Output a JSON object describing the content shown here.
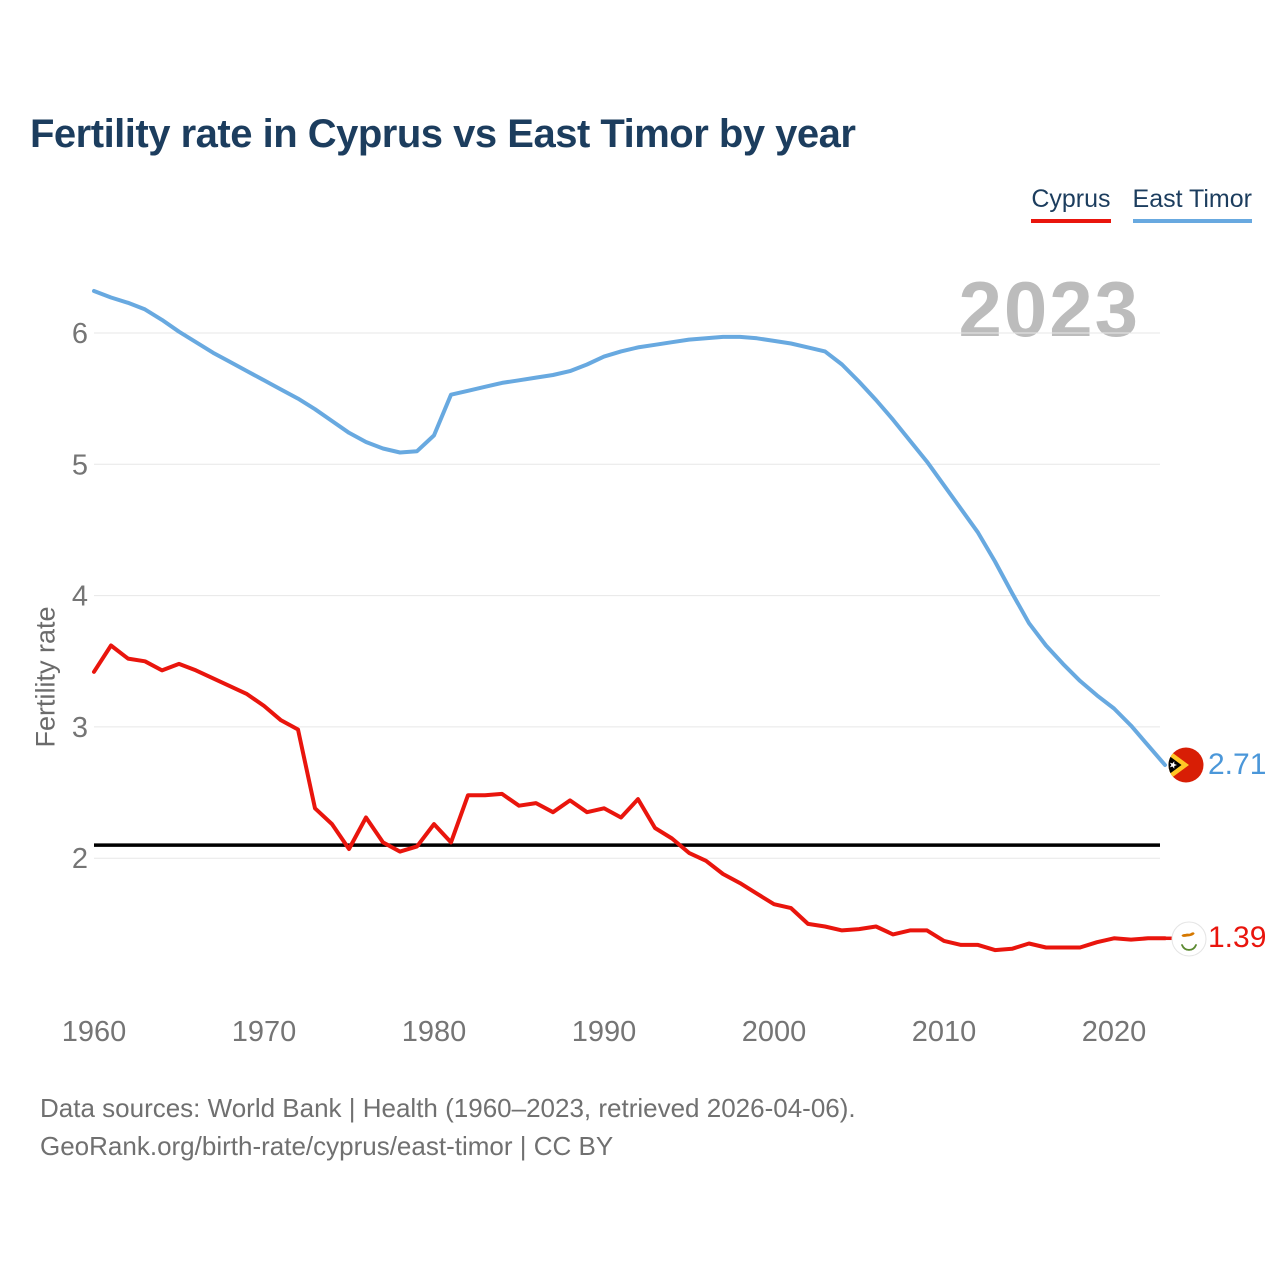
{
  "title": "Fertility rate in Cyprus vs East Timor by year",
  "legend": {
    "items": [
      {
        "label": "Cyprus",
        "color": "#e9150d"
      },
      {
        "label": "East Timor",
        "color": "#68a9e0"
      }
    ]
  },
  "watermark": "2023",
  "end_markers": {
    "east_timor": {
      "value": "2.71",
      "icon": "east-timor-flag-icon",
      "color": "#4b97d9"
    },
    "cyprus": {
      "value": "1.39",
      "icon": "cyprus-flag-icon",
      "color": "#e9150d"
    }
  },
  "footer": {
    "line1": "Data sources: World Bank | Health (1960–2023, retrieved 2026-04-06).",
    "line2": "GeoRank.org/birth-rate/cyprus/east-timor | CC BY"
  },
  "chart_data": {
    "type": "line",
    "title": "Fertility rate in Cyprus vs East Timor by year",
    "xlabel": "",
    "ylabel": "Fertility rate",
    "grid": true,
    "legend_position": "top-right",
    "xlim": [
      1960,
      2023
    ],
    "ylim": [
      1.2,
      6.5
    ],
    "x_ticks": [
      1960,
      1970,
      1980,
      1990,
      2000,
      2010,
      2020
    ],
    "y_ticks": [
      2,
      3,
      4,
      5,
      6
    ],
    "reference_line": 2.1,
    "x": [
      1960,
      1961,
      1962,
      1963,
      1964,
      1965,
      1966,
      1967,
      1968,
      1969,
      1970,
      1971,
      1972,
      1973,
      1974,
      1975,
      1976,
      1977,
      1978,
      1979,
      1980,
      1981,
      1982,
      1983,
      1984,
      1985,
      1986,
      1987,
      1988,
      1989,
      1990,
      1991,
      1992,
      1993,
      1994,
      1995,
      1996,
      1997,
      1998,
      1999,
      2000,
      2001,
      2002,
      2003,
      2004,
      2005,
      2006,
      2007,
      2008,
      2009,
      2010,
      2011,
      2012,
      2013,
      2014,
      2015,
      2016,
      2017,
      2018,
      2019,
      2020,
      2021,
      2022,
      2023
    ],
    "series": [
      {
        "name": "Cyprus",
        "color": "#e9150d",
        "values": [
          3.42,
          3.62,
          3.52,
          3.5,
          3.43,
          3.48,
          3.43,
          3.37,
          3.31,
          3.25,
          3.16,
          3.05,
          2.98,
          2.38,
          2.26,
          2.07,
          2.31,
          2.12,
          2.05,
          2.09,
          2.26,
          2.12,
          2.48,
          2.48,
          2.49,
          2.4,
          2.42,
          2.35,
          2.44,
          2.35,
          2.38,
          2.31,
          2.45,
          2.23,
          2.15,
          2.04,
          1.98,
          1.88,
          1.81,
          1.73,
          1.65,
          1.62,
          1.5,
          1.48,
          1.45,
          1.46,
          1.48,
          1.42,
          1.45,
          1.45,
          1.37,
          1.34,
          1.34,
          1.3,
          1.31,
          1.35,
          1.32,
          1.32,
          1.32,
          1.36,
          1.39,
          1.38,
          1.39,
          1.39
        ]
      },
      {
        "name": "East Timor",
        "color": "#68a9e0",
        "values": [
          6.32,
          6.27,
          6.23,
          6.18,
          6.1,
          6.01,
          5.93,
          5.85,
          5.78,
          5.71,
          5.64,
          5.57,
          5.5,
          5.42,
          5.33,
          5.24,
          5.17,
          5.12,
          5.09,
          5.1,
          5.22,
          5.53,
          5.56,
          5.59,
          5.62,
          5.64,
          5.66,
          5.68,
          5.71,
          5.76,
          5.82,
          5.86,
          5.89,
          5.91,
          5.93,
          5.95,
          5.96,
          5.97,
          5.97,
          5.96,
          5.94,
          5.92,
          5.89,
          5.86,
          5.76,
          5.63,
          5.49,
          5.34,
          5.18,
          5.02,
          4.84,
          4.66,
          4.48,
          4.26,
          4.02,
          3.79,
          3.62,
          3.48,
          3.35,
          3.24,
          3.14,
          3.01,
          2.86,
          2.71
        ]
      }
    ]
  }
}
